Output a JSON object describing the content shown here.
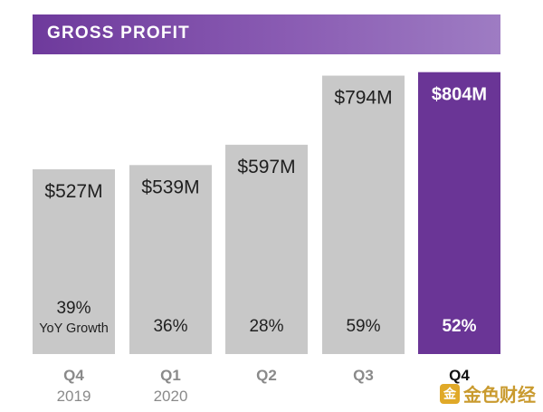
{
  "header": {
    "title": "GROSS PROFIT"
  },
  "colors": {
    "bar_default": "#c8c8c8",
    "bar_highlight": "#6a3596",
    "text_dark": "#1f1f1f",
    "text_light": "#ffffff",
    "axis_quarter": "#8a8a8a",
    "axis_year": "#8a8a8a",
    "axis_highlight": "#111111"
  },
  "chart_data": {
    "type": "bar",
    "title": "GROSS PROFIT",
    "categories": [
      "Q4",
      "Q1",
      "Q2",
      "Q3",
      "Q4"
    ],
    "years": [
      "2019",
      "2020",
      "",
      "",
      ""
    ],
    "values": [
      527,
      539,
      597,
      794,
      804
    ],
    "value_labels": [
      "$527M",
      "$539M",
      "$597M",
      "$794M",
      "$804M"
    ],
    "growth_labels": [
      "39%",
      "36%",
      "28%",
      "59%",
      "52%"
    ],
    "growth_sub_label": "YoY Growth",
    "highlight_index": 4,
    "ylim": [
      0,
      860
    ],
    "grid": false,
    "legend": "none"
  },
  "watermark": {
    "logo_glyph": "金",
    "text": "金色财经"
  }
}
